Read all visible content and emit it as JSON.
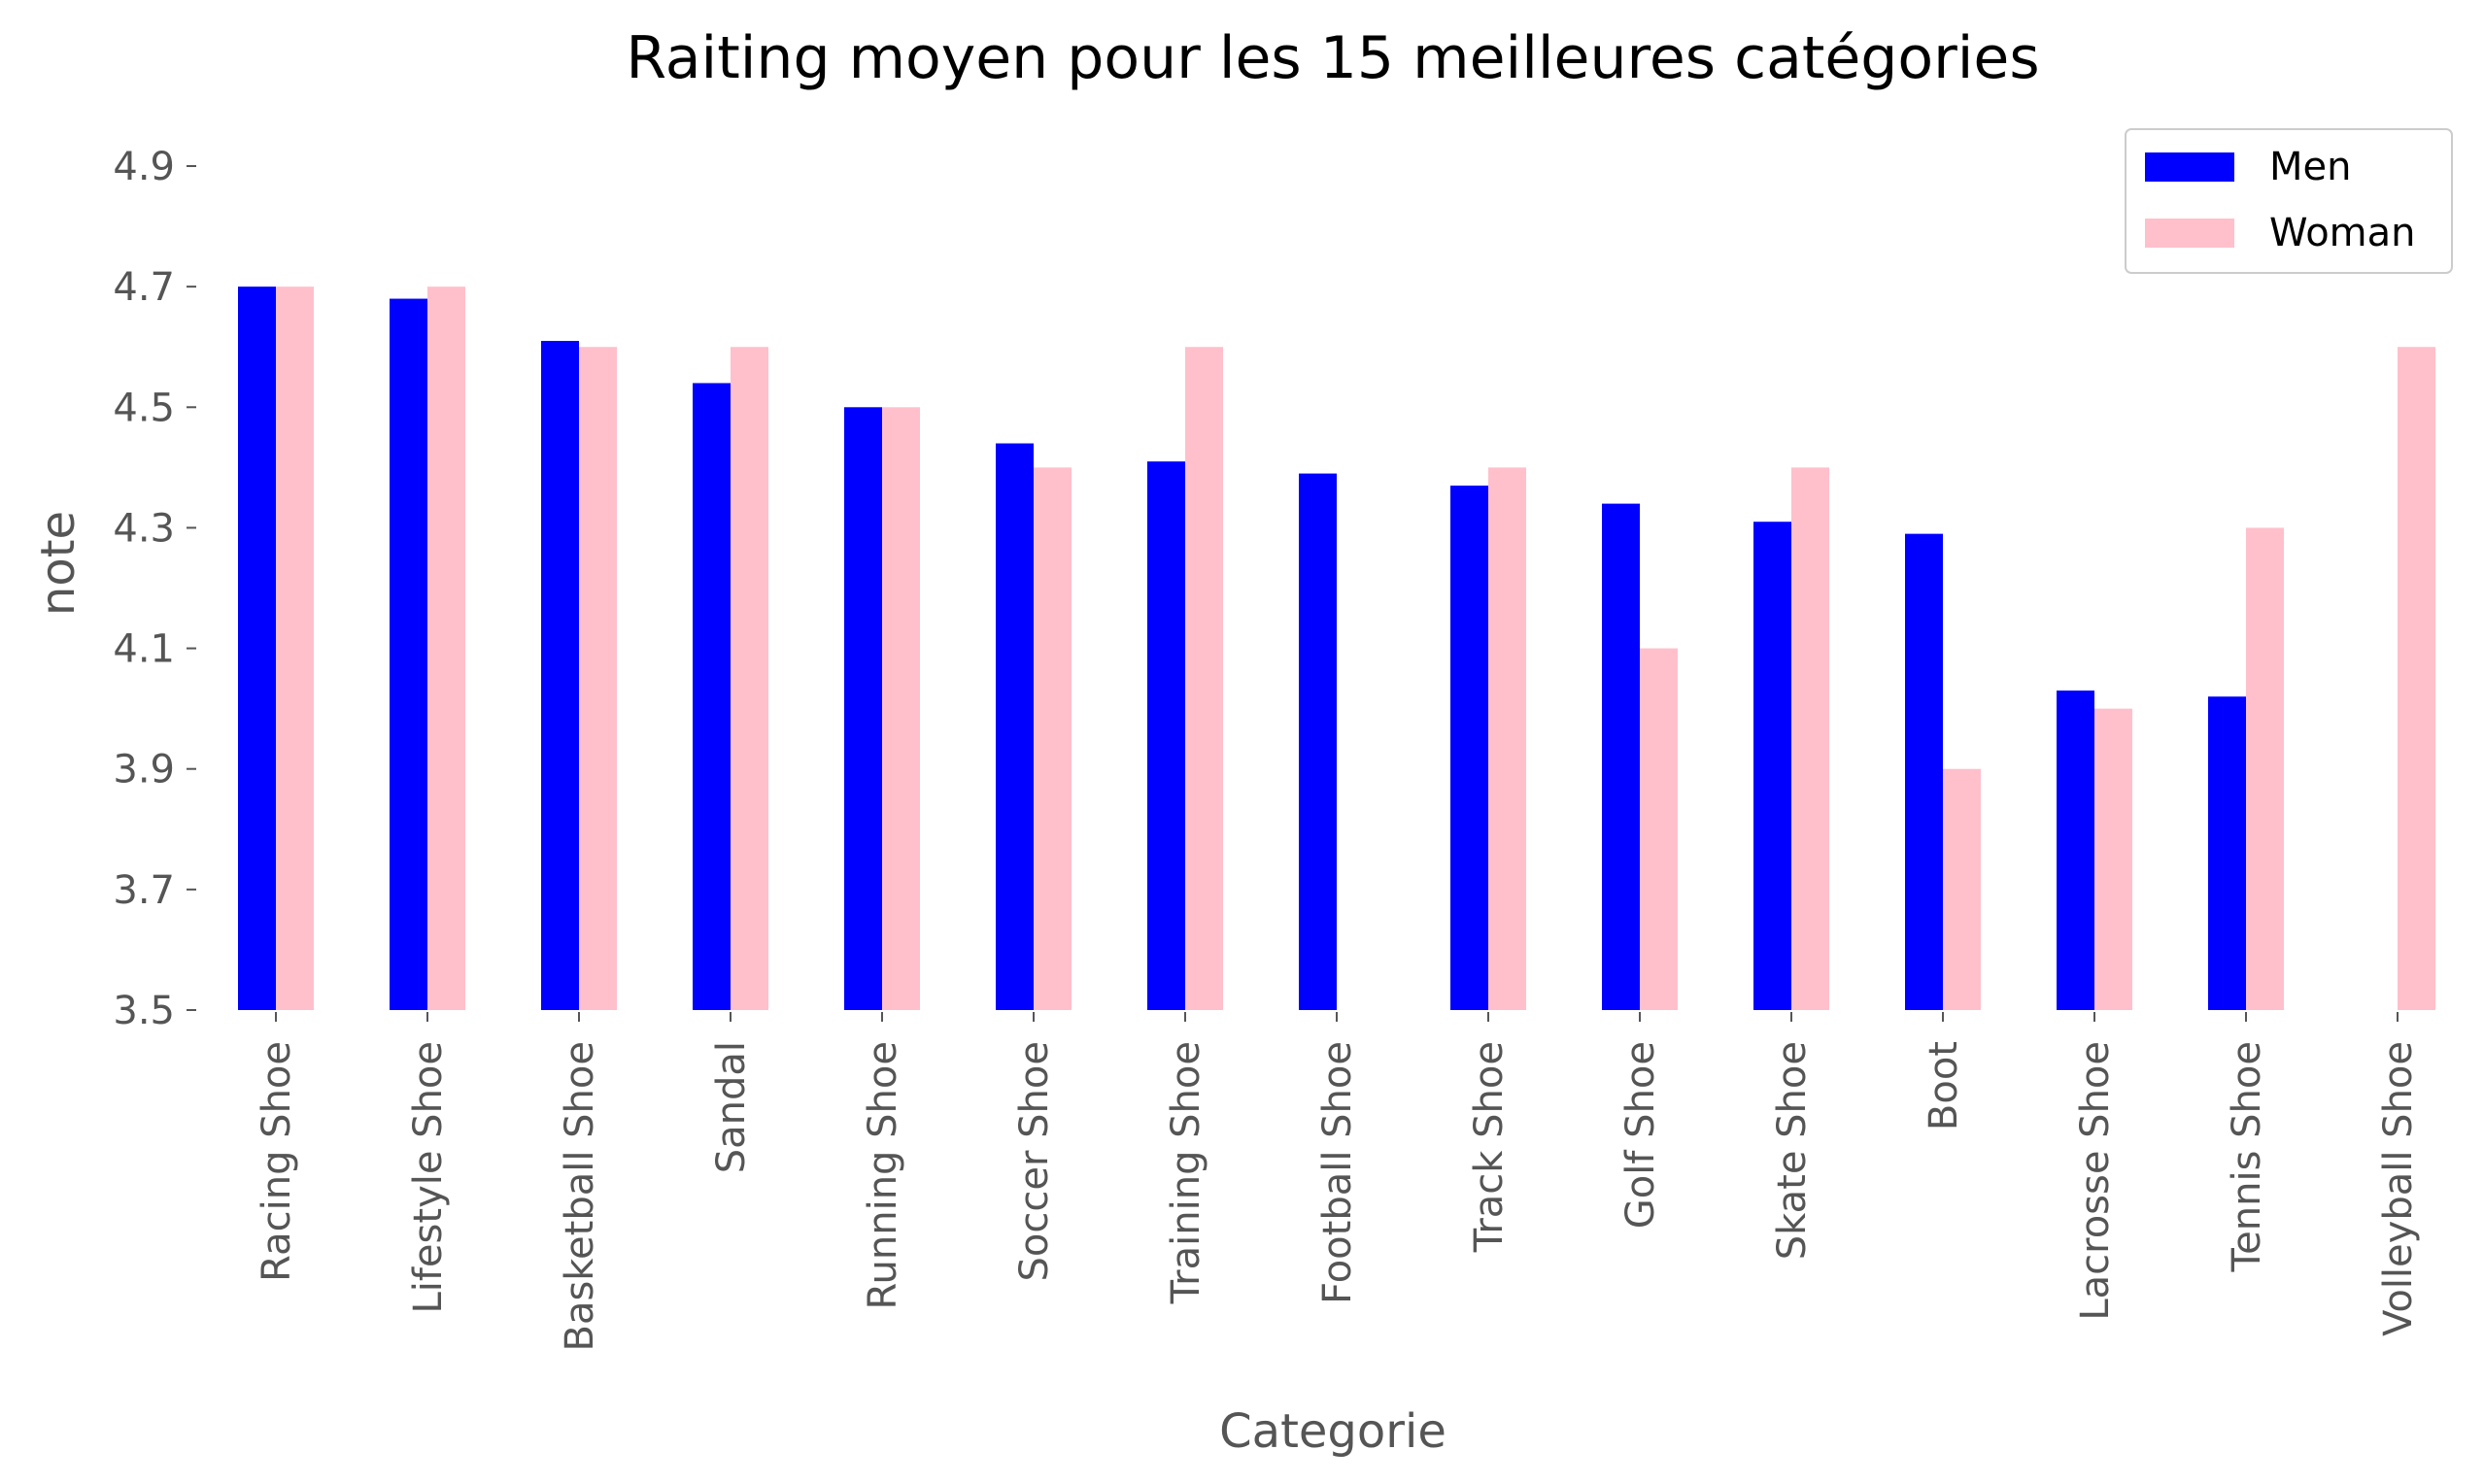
{
  "chart_data": {
    "type": "bar",
    "title": "Raiting moyen pour les 15 meilleures catégories",
    "xlabel": "Categorie",
    "ylabel": "note",
    "ylim": [
      3.5,
      4.9
    ],
    "yticks": [
      "3.5",
      "3.7",
      "3.9",
      "4.1",
      "4.3",
      "4.5",
      "4.7",
      "4.9"
    ],
    "grid": false,
    "legend_position": "top-right",
    "categories": [
      "Racing Shoe",
      "Lifestyle Shoe",
      "Basketball Shoe",
      "Sandal",
      "Running Shoe",
      "Soccer Shoe",
      "Training Shoe",
      "Football Shoe",
      "Track Shoe",
      "Golf Shoe",
      "Skate Shoe",
      "Boot",
      "Lacrosse Shoe",
      "Tennis Shoe",
      "Volleyball Shoe"
    ],
    "series": [
      {
        "name": "Men",
        "color": "#0000ff",
        "values": [
          4.7,
          4.68,
          4.61,
          4.54,
          4.5,
          4.44,
          4.41,
          4.39,
          4.37,
          4.34,
          4.31,
          4.29,
          4.03,
          4.02,
          null
        ]
      },
      {
        "name": "Woman",
        "color": "#ffc0cb",
        "values": [
          4.7,
          4.7,
          4.6,
          4.6,
          4.5,
          4.4,
          4.6,
          null,
          4.4,
          4.1,
          4.4,
          3.9,
          4.0,
          4.3,
          4.6
        ]
      }
    ]
  }
}
